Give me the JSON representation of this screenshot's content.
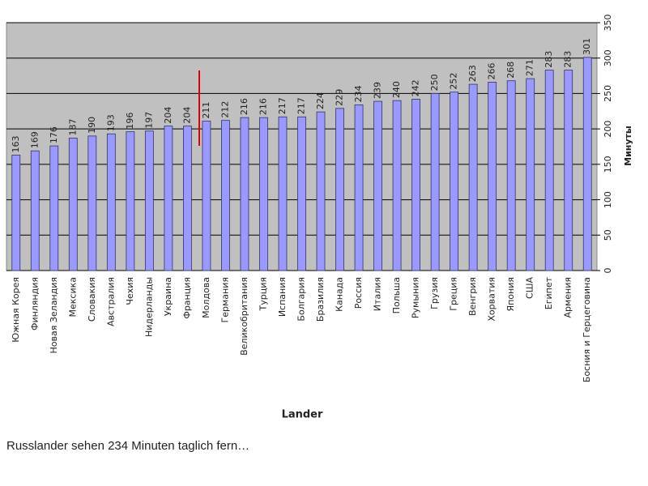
{
  "chart_data": {
    "type": "bar",
    "categories": [
      "Южная Корея",
      "Финляндия",
      "Новая Зеландия",
      "Мексика",
      "Словакия",
      "Австралия",
      "Чехия",
      "Нидерланды",
      "Украина",
      "Франция",
      "Молдова",
      "Германия",
      "Великобритания",
      "Турция",
      "Испания",
      "Болгария",
      "Бразилия",
      "Канада",
      "Россия",
      "Италия",
      "Польша",
      "Румыния",
      "Грузия",
      "Греция",
      "Венгрия",
      "Хорватия",
      "Япония",
      "США",
      "Египет",
      "Армения",
      "Босния и Герцеговина"
    ],
    "values": [
      163,
      169,
      176,
      187,
      190,
      193,
      196,
      197,
      204,
      204,
      211,
      212,
      216,
      216,
      217,
      217,
      224,
      229,
      234,
      239,
      240,
      242,
      250,
      252,
      263,
      266,
      268,
      271,
      283,
      283,
      301
    ],
    "color": "#9999ff",
    "ylim": [
      0,
      350
    ],
    "yticks": [
      0,
      50,
      100,
      150,
      200,
      250,
      300,
      350
    ],
    "grid": true,
    "y_label": "Минуты",
    "x_label": "Lander"
  },
  "caption": "Russlander  sehen  234 Minuten  taglich fern…"
}
